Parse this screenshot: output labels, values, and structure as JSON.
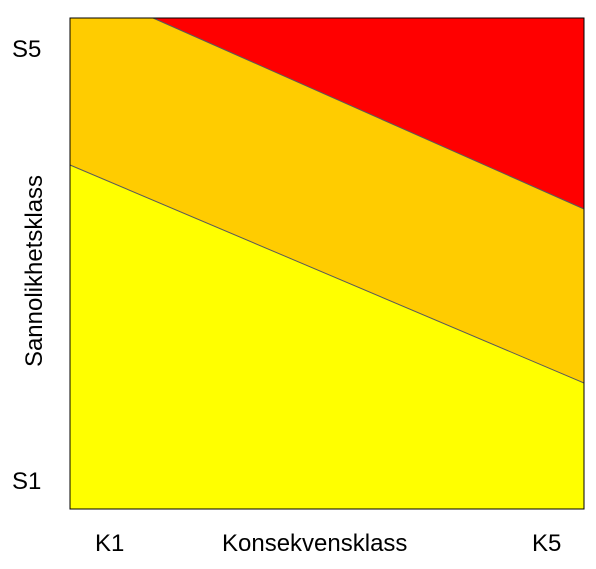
{
  "diagram": {
    "y_axis": {
      "title": "Sannolikhetsklass",
      "top_label": "S5",
      "bottom_label": "S1"
    },
    "x_axis": {
      "title": "Konsekvensklass",
      "left_label": "K1",
      "right_label": "K5"
    },
    "zones": [
      {
        "name": "low",
        "color": "#FFFF00"
      },
      {
        "name": "medium",
        "color": "#FFCC00"
      },
      {
        "name": "high",
        "color": "#FF0000"
      }
    ],
    "border_color": "#000000",
    "divider_color": "#5a5a5a"
  }
}
